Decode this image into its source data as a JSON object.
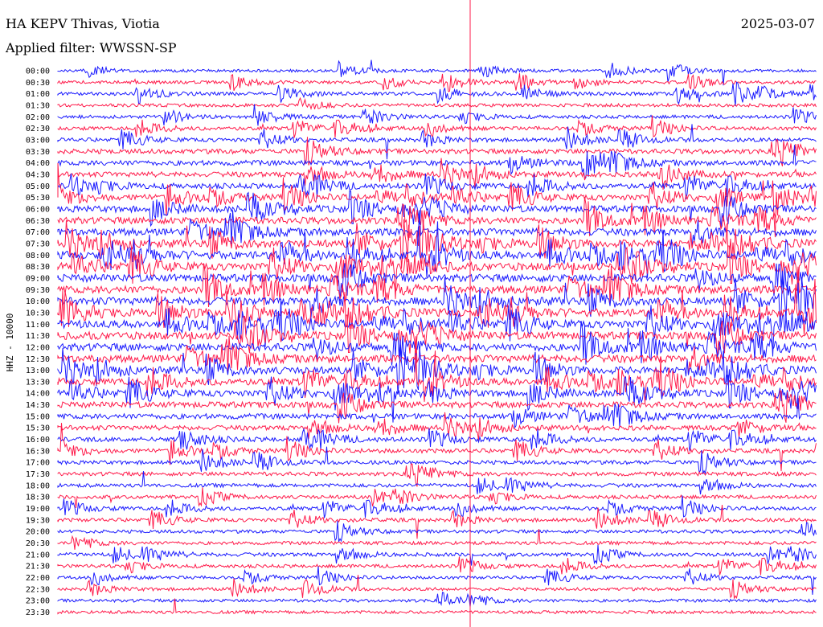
{
  "header": {
    "station": "HA KEPV Thivas, Viotia",
    "filter": "Applied filter: WWSSN-SP",
    "date": "2025-03-07"
  },
  "chart_data": {
    "type": "line",
    "title": "HA KEPV Thivas, Viotia",
    "subtitle": "Applied filter: WWSSN-SP",
    "date": "2025-03-07",
    "ylabel": "HHZ - 10000",
    "row_labels": [
      "00:00",
      "00:30",
      "01:00",
      "01:30",
      "02:00",
      "02:30",
      "03:00",
      "03:30",
      "04:00",
      "04:30",
      "05:00",
      "05:30",
      "06:00",
      "06:30",
      "07:00",
      "07:30",
      "08:00",
      "08:30",
      "09:00",
      "09:30",
      "10:00",
      "10:30",
      "11:00",
      "11:30",
      "12:00",
      "12:30",
      "13:00",
      "13:30",
      "14:00",
      "14:30",
      "15:00",
      "15:30",
      "16:00",
      "16:30",
      "17:00",
      "17:30",
      "18:00",
      "18:30",
      "19:00",
      "19:30",
      "20:00",
      "20:30",
      "21:00",
      "21:30",
      "22:00",
      "22:30",
      "23:00",
      "23:30"
    ],
    "trace_colors": [
      "#1a1aff",
      "#ff1a4a"
    ],
    "marker_color": "#ff1a4a",
    "activity_by_row": [
      0.15,
      0.2,
      0.25,
      0.25,
      0.25,
      0.3,
      0.35,
      0.5,
      0.55,
      0.55,
      0.6,
      0.7,
      0.8,
      0.85,
      0.9,
      0.95,
      1.0,
      1.0,
      1.0,
      1.0,
      1.0,
      1.0,
      1.0,
      1.0,
      1.0,
      0.95,
      0.9,
      0.85,
      0.8,
      0.7,
      0.6,
      0.5,
      0.45,
      0.4,
      0.35,
      0.35,
      0.3,
      0.3,
      0.3,
      0.3,
      0.25,
      0.25,
      0.3,
      0.25,
      0.2,
      0.2,
      0.2,
      0.2
    ]
  }
}
